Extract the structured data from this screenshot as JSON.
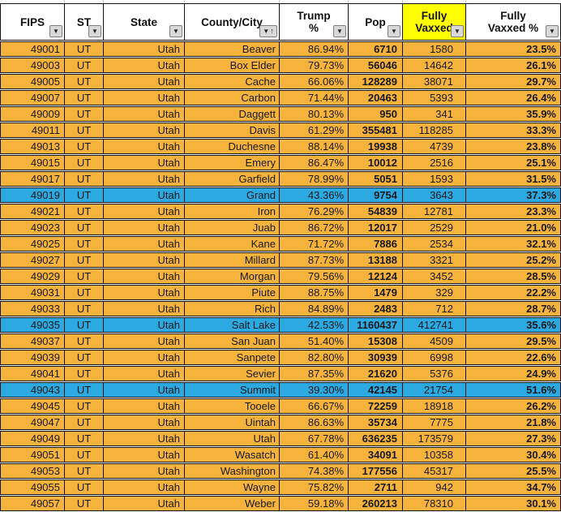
{
  "colors": {
    "row_orange": "#f6b33c",
    "row_highlight_blue": "#2ba9e0",
    "header_yellow": "#ffff00",
    "header_white": "#ffffff",
    "grid_black": "#121212",
    "filter_button_gray": "#d9d9d9"
  },
  "icons": {
    "filter_dropdown": "▼",
    "sort_ascending": "↑"
  },
  "table": {
    "column_keys": [
      "fips",
      "st",
      "state",
      "county",
      "trump_pct",
      "pop",
      "fully_vaxxed",
      "fully_vaxxed_pct"
    ],
    "columns": [
      {
        "key": "fips",
        "label": "FIPS"
      },
      {
        "key": "st",
        "label": "ST"
      },
      {
        "key": "state",
        "label": "State"
      },
      {
        "key": "county",
        "label": "County/City",
        "sorted": "ascending"
      },
      {
        "key": "trump_pct",
        "label": "Trump\n%"
      },
      {
        "key": "pop",
        "label": "Pop"
      },
      {
        "key": "fully_vaxxed",
        "label": "Fully\nVaxxed",
        "highlighted": true
      },
      {
        "key": "fully_vaxxed_pct",
        "label": "Fully\nVaxxed %"
      }
    ],
    "rows": [
      {
        "fips": "49001",
        "st": "UT",
        "state": "Utah",
        "county": "Beaver",
        "trump_pct": "86.94%",
        "pop": "6710",
        "fully_vaxxed": "1580",
        "fully_vaxxed_pct": "23.5%",
        "highlight": false
      },
      {
        "fips": "49003",
        "st": "UT",
        "state": "Utah",
        "county": "Box Elder",
        "trump_pct": "79.73%",
        "pop": "56046",
        "fully_vaxxed": "14642",
        "fully_vaxxed_pct": "26.1%",
        "highlight": false
      },
      {
        "fips": "49005",
        "st": "UT",
        "state": "Utah",
        "county": "Cache",
        "trump_pct": "66.06%",
        "pop": "128289",
        "fully_vaxxed": "38071",
        "fully_vaxxed_pct": "29.7%",
        "highlight": false
      },
      {
        "fips": "49007",
        "st": "UT",
        "state": "Utah",
        "county": "Carbon",
        "trump_pct": "71.44%",
        "pop": "20463",
        "fully_vaxxed": "5393",
        "fully_vaxxed_pct": "26.4%",
        "highlight": false
      },
      {
        "fips": "49009",
        "st": "UT",
        "state": "Utah",
        "county": "Daggett",
        "trump_pct": "80.13%",
        "pop": "950",
        "fully_vaxxed": "341",
        "fully_vaxxed_pct": "35.9%",
        "highlight": false
      },
      {
        "fips": "49011",
        "st": "UT",
        "state": "Utah",
        "county": "Davis",
        "trump_pct": "61.29%",
        "pop": "355481",
        "fully_vaxxed": "118285",
        "fully_vaxxed_pct": "33.3%",
        "highlight": false
      },
      {
        "fips": "49013",
        "st": "UT",
        "state": "Utah",
        "county": "Duchesne",
        "trump_pct": "88.14%",
        "pop": "19938",
        "fully_vaxxed": "4739",
        "fully_vaxxed_pct": "23.8%",
        "highlight": false
      },
      {
        "fips": "49015",
        "st": "UT",
        "state": "Utah",
        "county": "Emery",
        "trump_pct": "86.47%",
        "pop": "10012",
        "fully_vaxxed": "2516",
        "fully_vaxxed_pct": "25.1%",
        "highlight": false
      },
      {
        "fips": "49017",
        "st": "UT",
        "state": "Utah",
        "county": "Garfield",
        "trump_pct": "78.99%",
        "pop": "5051",
        "fully_vaxxed": "1593",
        "fully_vaxxed_pct": "31.5%",
        "highlight": false
      },
      {
        "fips": "49019",
        "st": "UT",
        "state": "Utah",
        "county": "Grand",
        "trump_pct": "43.36%",
        "pop": "9754",
        "fully_vaxxed": "3643",
        "fully_vaxxed_pct": "37.3%",
        "highlight": true
      },
      {
        "fips": "49021",
        "st": "UT",
        "state": "Utah",
        "county": "Iron",
        "trump_pct": "76.29%",
        "pop": "54839",
        "fully_vaxxed": "12781",
        "fully_vaxxed_pct": "23.3%",
        "highlight": false
      },
      {
        "fips": "49023",
        "st": "UT",
        "state": "Utah",
        "county": "Juab",
        "trump_pct": "86.72%",
        "pop": "12017",
        "fully_vaxxed": "2529",
        "fully_vaxxed_pct": "21.0%",
        "highlight": false
      },
      {
        "fips": "49025",
        "st": "UT",
        "state": "Utah",
        "county": "Kane",
        "trump_pct": "71.72%",
        "pop": "7886",
        "fully_vaxxed": "2534",
        "fully_vaxxed_pct": "32.1%",
        "highlight": false
      },
      {
        "fips": "49027",
        "st": "UT",
        "state": "Utah",
        "county": "Millard",
        "trump_pct": "87.73%",
        "pop": "13188",
        "fully_vaxxed": "3321",
        "fully_vaxxed_pct": "25.2%",
        "highlight": false
      },
      {
        "fips": "49029",
        "st": "UT",
        "state": "Utah",
        "county": "Morgan",
        "trump_pct": "79.56%",
        "pop": "12124",
        "fully_vaxxed": "3452",
        "fully_vaxxed_pct": "28.5%",
        "highlight": false
      },
      {
        "fips": "49031",
        "st": "UT",
        "state": "Utah",
        "county": "Piute",
        "trump_pct": "88.75%",
        "pop": "1479",
        "fully_vaxxed": "329",
        "fully_vaxxed_pct": "22.2%",
        "highlight": false
      },
      {
        "fips": "49033",
        "st": "UT",
        "state": "Utah",
        "county": "Rich",
        "trump_pct": "84.89%",
        "pop": "2483",
        "fully_vaxxed": "712",
        "fully_vaxxed_pct": "28.7%",
        "highlight": false
      },
      {
        "fips": "49035",
        "st": "UT",
        "state": "Utah",
        "county": "Salt Lake",
        "trump_pct": "42.53%",
        "pop": "1160437",
        "fully_vaxxed": "412741",
        "fully_vaxxed_pct": "35.6%",
        "highlight": true
      },
      {
        "fips": "49037",
        "st": "UT",
        "state": "Utah",
        "county": "San Juan",
        "trump_pct": "51.40%",
        "pop": "15308",
        "fully_vaxxed": "4509",
        "fully_vaxxed_pct": "29.5%",
        "highlight": false
      },
      {
        "fips": "49039",
        "st": "UT",
        "state": "Utah",
        "county": "Sanpete",
        "trump_pct": "82.80%",
        "pop": "30939",
        "fully_vaxxed": "6998",
        "fully_vaxxed_pct": "22.6%",
        "highlight": false
      },
      {
        "fips": "49041",
        "st": "UT",
        "state": "Utah",
        "county": "Sevier",
        "trump_pct": "87.35%",
        "pop": "21620",
        "fully_vaxxed": "5376",
        "fully_vaxxed_pct": "24.9%",
        "highlight": false
      },
      {
        "fips": "49043",
        "st": "UT",
        "state": "Utah",
        "county": "Summit",
        "trump_pct": "39.30%",
        "pop": "42145",
        "fully_vaxxed": "21754",
        "fully_vaxxed_pct": "51.6%",
        "highlight": true
      },
      {
        "fips": "49045",
        "st": "UT",
        "state": "Utah",
        "county": "Tooele",
        "trump_pct": "66.67%",
        "pop": "72259",
        "fully_vaxxed": "18918",
        "fully_vaxxed_pct": "26.2%",
        "highlight": false
      },
      {
        "fips": "49047",
        "st": "UT",
        "state": "Utah",
        "county": "Uintah",
        "trump_pct": "86.63%",
        "pop": "35734",
        "fully_vaxxed": "7775",
        "fully_vaxxed_pct": "21.8%",
        "highlight": false
      },
      {
        "fips": "49049",
        "st": "UT",
        "state": "Utah",
        "county": "Utah",
        "trump_pct": "67.78%",
        "pop": "636235",
        "fully_vaxxed": "173579",
        "fully_vaxxed_pct": "27.3%",
        "highlight": false
      },
      {
        "fips": "49051",
        "st": "UT",
        "state": "Utah",
        "county": "Wasatch",
        "trump_pct": "61.40%",
        "pop": "34091",
        "fully_vaxxed": "10358",
        "fully_vaxxed_pct": "30.4%",
        "highlight": false
      },
      {
        "fips": "49053",
        "st": "UT",
        "state": "Utah",
        "county": "Washington",
        "trump_pct": "74.38%",
        "pop": "177556",
        "fully_vaxxed": "45317",
        "fully_vaxxed_pct": "25.5%",
        "highlight": false
      },
      {
        "fips": "49055",
        "st": "UT",
        "state": "Utah",
        "county": "Wayne",
        "trump_pct": "75.82%",
        "pop": "2711",
        "fully_vaxxed": "942",
        "fully_vaxxed_pct": "34.7%",
        "highlight": false
      },
      {
        "fips": "49057",
        "st": "UT",
        "state": "Utah",
        "county": "Weber",
        "trump_pct": "59.18%",
        "pop": "260213",
        "fully_vaxxed": "78310",
        "fully_vaxxed_pct": "30.1%",
        "highlight": false
      }
    ]
  }
}
